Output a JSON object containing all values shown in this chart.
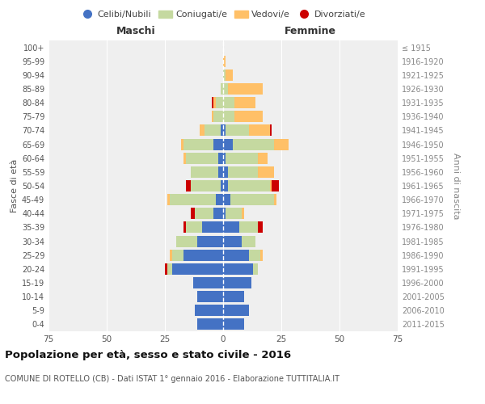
{
  "age_groups": [
    "0-4",
    "5-9",
    "10-14",
    "15-19",
    "20-24",
    "25-29",
    "30-34",
    "35-39",
    "40-44",
    "45-49",
    "50-54",
    "55-59",
    "60-64",
    "65-69",
    "70-74",
    "75-79",
    "80-84",
    "85-89",
    "90-94",
    "95-99",
    "100+"
  ],
  "birth_years": [
    "2011-2015",
    "2006-2010",
    "2001-2005",
    "1996-2000",
    "1991-1995",
    "1986-1990",
    "1981-1985",
    "1976-1980",
    "1971-1975",
    "1966-1970",
    "1961-1965",
    "1956-1960",
    "1951-1955",
    "1946-1950",
    "1941-1945",
    "1936-1940",
    "1931-1935",
    "1926-1930",
    "1921-1925",
    "1916-1920",
    "≤ 1915"
  ],
  "maschi": {
    "celibi": [
      11,
      12,
      11,
      13,
      22,
      17,
      11,
      9,
      4,
      3,
      1,
      2,
      2,
      4,
      1,
      0,
      0,
      0,
      0,
      0,
      0
    ],
    "coniugati": [
      0,
      0,
      0,
      0,
      2,
      5,
      9,
      7,
      8,
      20,
      13,
      12,
      14,
      13,
      7,
      4,
      3,
      1,
      0,
      0,
      0
    ],
    "vedovi": [
      0,
      0,
      0,
      0,
      0,
      1,
      0,
      0,
      0,
      1,
      0,
      0,
      1,
      1,
      2,
      1,
      1,
      0,
      0,
      0,
      0
    ],
    "divorziati": [
      0,
      0,
      0,
      0,
      1,
      0,
      0,
      1,
      2,
      0,
      2,
      0,
      0,
      0,
      0,
      0,
      1,
      0,
      0,
      0,
      0
    ]
  },
  "femmine": {
    "celibi": [
      9,
      11,
      9,
      12,
      13,
      11,
      8,
      7,
      1,
      3,
      2,
      2,
      1,
      4,
      1,
      0,
      0,
      0,
      0,
      0,
      0
    ],
    "coniugati": [
      0,
      0,
      0,
      0,
      2,
      5,
      6,
      8,
      7,
      19,
      18,
      13,
      14,
      18,
      10,
      5,
      5,
      2,
      1,
      0,
      0
    ],
    "vedovi": [
      0,
      0,
      0,
      0,
      0,
      1,
      0,
      0,
      1,
      1,
      1,
      7,
      4,
      6,
      9,
      12,
      9,
      15,
      3,
      1,
      0
    ],
    "divorziati": [
      0,
      0,
      0,
      0,
      0,
      0,
      0,
      2,
      0,
      0,
      3,
      0,
      0,
      0,
      1,
      0,
      0,
      0,
      0,
      0,
      0
    ]
  },
  "colors": {
    "celibi": "#4472c4",
    "coniugati": "#c5d9a0",
    "vedovi": "#ffc067",
    "divorziati": "#cc0000"
  },
  "xlim": 75,
  "title": "Popolazione per età, sesso e stato civile - 2016",
  "subtitle": "COMUNE DI ROTELLO (CB) - Dati ISTAT 1° gennaio 2016 - Elaborazione TUTTITALIA.IT",
  "ylabel_left": "Fasce di età",
  "ylabel_right": "Anni di nascita",
  "xlabel_maschi": "Maschi",
  "xlabel_femmine": "Femmine",
  "bg_color": "#efefef",
  "legend_labels": [
    "Celibi/Nubili",
    "Coniugati/e",
    "Vedovi/e",
    "Divorziati/e"
  ]
}
